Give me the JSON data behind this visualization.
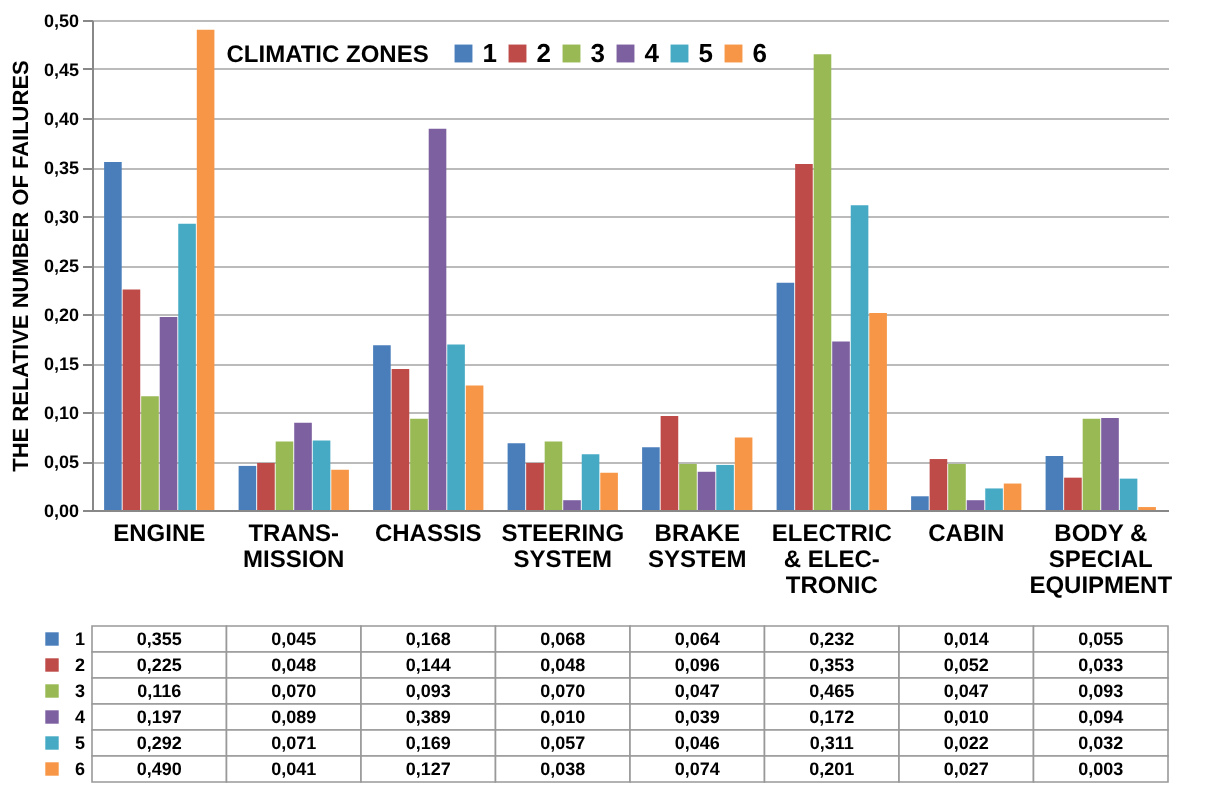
{
  "chart_data": {
    "type": "bar",
    "ylabel": "THE RELATIVE NUMBER OF FAILURES",
    "legend_title": "CLIMATIC ZONES",
    "categories": [
      "ENGINE",
      "TRANS-MISSION",
      "CHASSIS",
      "STEERING SYSTEM",
      "BRAKE SYSTEM",
      "ELECTRIC & ELEC-TRONIC",
      "CABIN",
      "BODY & SPECIAL EQUIPMENT"
    ],
    "series": [
      {
        "name": "1",
        "color": "#4a7ebb",
        "values": [
          0.355,
          0.045,
          0.168,
          0.068,
          0.064,
          0.232,
          0.014,
          0.055
        ],
        "value_labels": [
          "0,355",
          "0,045",
          "0,168",
          "0,068",
          "0,064",
          "0,232",
          "0,014",
          "0,055"
        ]
      },
      {
        "name": "2",
        "color": "#be4b48",
        "values": [
          0.225,
          0.048,
          0.144,
          0.048,
          0.096,
          0.353,
          0.052,
          0.033
        ],
        "value_labels": [
          "0,225",
          "0,048",
          "0,144",
          "0,048",
          "0,096",
          "0,353",
          "0,052",
          "0,033"
        ]
      },
      {
        "name": "3",
        "color": "#98b954",
        "values": [
          0.116,
          0.07,
          0.093,
          0.07,
          0.047,
          0.465,
          0.047,
          0.093
        ],
        "value_labels": [
          "0,116",
          "0,070",
          "0,093",
          "0,070",
          "0,047",
          "0,465",
          "0,047",
          "0,093"
        ]
      },
      {
        "name": "4",
        "color": "#7d60a0",
        "values": [
          0.197,
          0.089,
          0.389,
          0.01,
          0.039,
          0.172,
          0.01,
          0.094
        ],
        "value_labels": [
          "0,197",
          "0,089",
          "0,389",
          "0,010",
          "0,039",
          "0,172",
          "0,010",
          "0,094"
        ]
      },
      {
        "name": "5",
        "color": "#46aac5",
        "values": [
          0.292,
          0.071,
          0.169,
          0.057,
          0.046,
          0.311,
          0.022,
          0.032
        ],
        "value_labels": [
          "0,292",
          "0,071",
          "0,169",
          "0,057",
          "0,046",
          "0,311",
          "0,022",
          "0,032"
        ]
      },
      {
        "name": "6",
        "color": "#f79646",
        "values": [
          0.49,
          0.041,
          0.127,
          0.038,
          0.074,
          0.201,
          0.027,
          0.003
        ],
        "value_labels": [
          "0,490",
          "0,041",
          "0,127",
          "0,038",
          "0,074",
          "0,201",
          "0,027",
          "0,003"
        ]
      }
    ],
    "ylim": [
      0,
      0.5
    ],
    "yticks": [
      {
        "value": 0,
        "label": "0,00"
      },
      {
        "value": 0.05,
        "label": "0,05"
      },
      {
        "value": 0.1,
        "label": "0,10"
      },
      {
        "value": 0.15,
        "label": "0,15"
      },
      {
        "value": 0.2,
        "label": "0,20"
      },
      {
        "value": 0.25,
        "label": "0,25"
      },
      {
        "value": 0.3,
        "label": "0,30"
      },
      {
        "value": 0.35,
        "label": "0,35"
      },
      {
        "value": 0.4,
        "label": "0,40"
      },
      {
        "value": 0.45,
        "label": "0,45"
      },
      {
        "value": 0.5,
        "label": "0,50"
      }
    ],
    "grid": "y",
    "legend": "top"
  }
}
